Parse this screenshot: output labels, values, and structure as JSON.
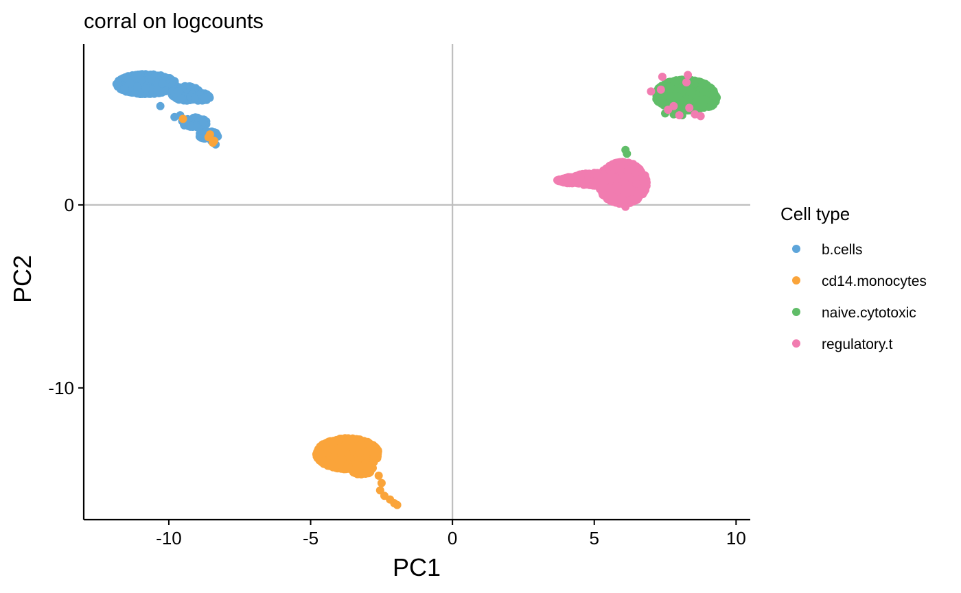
{
  "chart_data": {
    "type": "scatter",
    "title": "corral on logcounts",
    "xlabel": "PC1",
    "ylabel": "PC2",
    "xlim": [
      -13,
      10.5
    ],
    "ylim": [
      -17.2,
      8.8
    ],
    "x_ticks": [
      -10,
      -5,
      0,
      5,
      10
    ],
    "y_ticks": [
      -10,
      0
    ],
    "reference_lines": {
      "x": 0,
      "y": 0,
      "color": "#bebebe"
    },
    "grid": false,
    "legend": {
      "title": "Cell type",
      "position": "right"
    },
    "series": [
      {
        "name": "b.cells",
        "color": "#5da5da",
        "clusters": [
          {
            "cx": -10.8,
            "cy": 6.6,
            "rx": 1.05,
            "ry": 0.55,
            "n": 900
          },
          {
            "cx": -9.4,
            "cy": 6.1,
            "rx": 0.5,
            "ry": 0.4,
            "n": 250
          },
          {
            "cx": -8.9,
            "cy": 5.9,
            "rx": 0.35,
            "ry": 0.22,
            "n": 80
          },
          {
            "cx": -9.1,
            "cy": 4.5,
            "rx": 0.45,
            "ry": 0.3,
            "n": 90
          },
          {
            "cx": -8.6,
            "cy": 3.8,
            "rx": 0.35,
            "ry": 0.22,
            "n": 60
          }
        ],
        "points": [
          [
            -10.3,
            5.4
          ],
          [
            -9.8,
            4.8
          ],
          [
            -9.6,
            4.9
          ],
          [
            -8.35,
            3.3
          ],
          [
            -8.5,
            3.5
          ],
          [
            -8.8,
            3.9
          ]
        ]
      },
      {
        "name": "cd14.monocytes",
        "color": "#faa43a",
        "clusters": [
          {
            "cx": -3.7,
            "cy": -13.6,
            "rx": 1.1,
            "ry": 0.85,
            "n": 1200
          },
          {
            "cx": -3.2,
            "cy": -14.4,
            "rx": 0.4,
            "ry": 0.35,
            "n": 60
          }
        ],
        "points": [
          [
            -2.6,
            -14.8
          ],
          [
            -2.5,
            -15.2
          ],
          [
            -2.55,
            -15.6
          ],
          [
            -2.4,
            -15.9
          ],
          [
            -2.2,
            -16.1
          ],
          [
            -2.05,
            -16.3
          ],
          [
            -1.95,
            -16.4
          ],
          [
            -9.5,
            4.7
          ],
          [
            -8.6,
            3.7
          ],
          [
            -8.45,
            3.4
          ],
          [
            -8.55,
            3.85
          ],
          [
            -8.4,
            3.5
          ]
        ]
      },
      {
        "name": "naive.cytotoxic",
        "color": "#60bd68",
        "clusters": [
          {
            "cx": 8.2,
            "cy": 6.0,
            "rx": 1.05,
            "ry": 0.85,
            "n": 1100
          },
          {
            "cx": 8.8,
            "cy": 5.8,
            "rx": 0.55,
            "ry": 0.5,
            "n": 200
          }
        ],
        "points": [
          [
            6.1,
            3.0
          ],
          [
            6.15,
            2.8
          ],
          [
            7.8,
            4.95
          ],
          [
            8.1,
            4.9
          ],
          [
            7.5,
            5.0
          ]
        ]
      },
      {
        "name": "regulatory.t",
        "color": "#f17cb0",
        "clusters": [
          {
            "cx": 6.0,
            "cy": 1.2,
            "rx": 0.85,
            "ry": 1.15,
            "n": 1000
          },
          {
            "cx": 5.0,
            "cy": 1.4,
            "rx": 0.8,
            "ry": 0.35,
            "n": 300
          },
          {
            "cx": 4.2,
            "cy": 1.35,
            "rx": 0.45,
            "ry": 0.18,
            "n": 80
          }
        ],
        "points": [
          [
            3.7,
            1.35
          ],
          [
            3.75,
            1.3
          ],
          [
            6.1,
            -0.1
          ],
          [
            7.0,
            6.2
          ],
          [
            7.35,
            6.3
          ],
          [
            7.4,
            7.0
          ],
          [
            7.8,
            5.4
          ],
          [
            8.3,
            7.1
          ],
          [
            8.25,
            6.7
          ],
          [
            8.35,
            5.3
          ],
          [
            8.0,
            4.9
          ],
          [
            8.55,
            4.95
          ],
          [
            8.75,
            4.85
          ],
          [
            7.6,
            5.2
          ]
        ]
      }
    ]
  }
}
